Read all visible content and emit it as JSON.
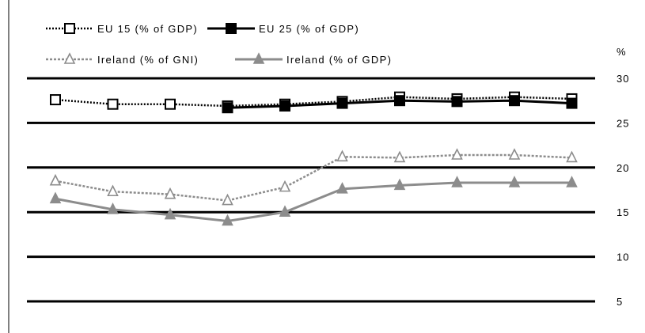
{
  "chart_data": {
    "type": "line",
    "y_unit": "%",
    "ylim": [
      5,
      30
    ],
    "yticks": [
      5,
      10,
      15,
      20,
      25,
      30
    ],
    "grid": true,
    "legend_position": "top-left",
    "x_count": 10,
    "series": [
      {
        "name": "EU 15 (% of GDP)",
        "style": "dotted",
        "color": "#000000",
        "marker": "square-open",
        "values": [
          27.6,
          27.1,
          27.1,
          26.9,
          27.1,
          27.4,
          27.9,
          27.7,
          27.9,
          27.7
        ]
      },
      {
        "name": "EU 25 (% of GDP)",
        "style": "solid",
        "color": "#000000",
        "marker": "square-filled",
        "values": [
          null,
          null,
          null,
          26.7,
          26.9,
          27.2,
          27.5,
          27.4,
          27.5,
          27.2
        ]
      },
      {
        "name": "Ireland (% of GNI)",
        "style": "dotted",
        "color": "#8c8c8c",
        "marker": "triangle-open",
        "values": [
          18.5,
          17.3,
          17.0,
          16.3,
          17.8,
          21.2,
          21.1,
          21.4,
          21.4,
          21.1
        ]
      },
      {
        "name": "Ireland (% of GDP)",
        "style": "solid",
        "color": "#8c8c8c",
        "marker": "triangle-filled",
        "values": [
          16.5,
          15.3,
          14.7,
          14.0,
          15.0,
          17.6,
          18.0,
          18.3,
          18.3,
          18.3
        ]
      }
    ]
  }
}
